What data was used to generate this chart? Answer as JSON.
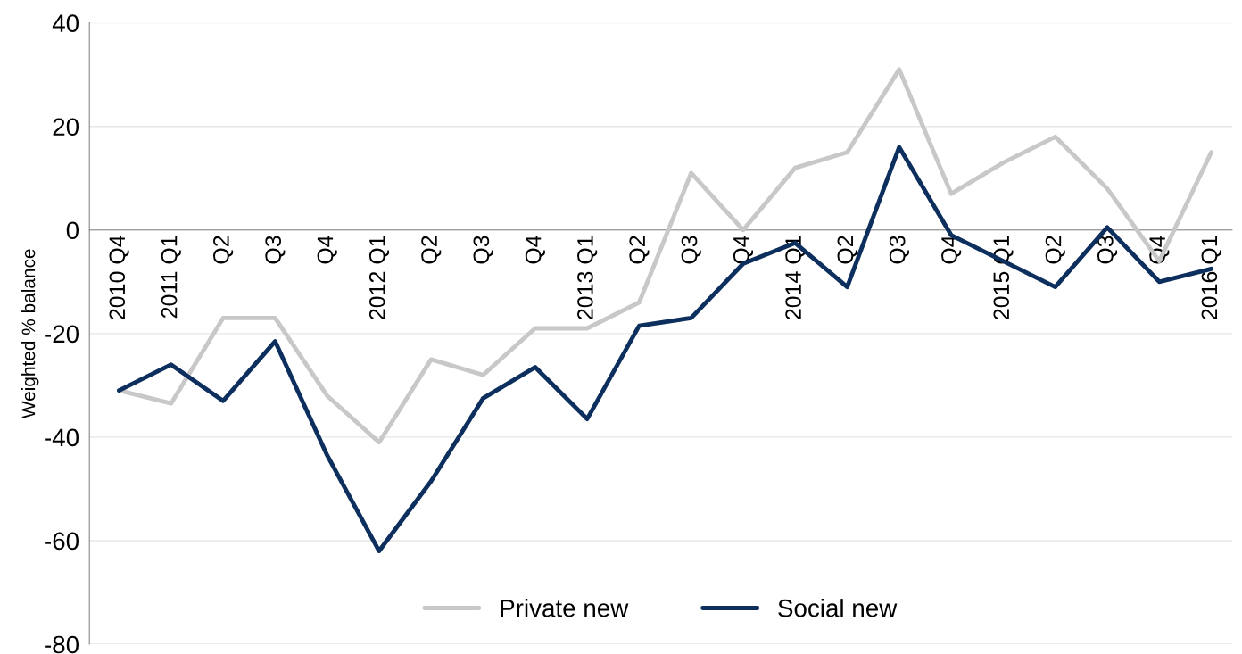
{
  "chart_data": {
    "type": "line",
    "ylabel": "Weighted % balance",
    "categories": [
      "2010 Q4",
      "2011 Q1",
      "Q2",
      "Q3",
      "Q4",
      "2012 Q1",
      "Q2",
      "Q3",
      "Q4",
      "2013 Q1",
      "Q2",
      "Q3",
      "Q4",
      "2014 Q1",
      "Q2",
      "Q3",
      "Q4",
      "2015 Q1",
      "Q2",
      "Q3",
      "Q4",
      "2016 Q1"
    ],
    "series": [
      {
        "name": "Private new",
        "color": "#c8c8c8",
        "values": [
          -31,
          -33.5,
          -17,
          -17,
          -32,
          -41,
          -25,
          -28,
          -19,
          -19,
          -14,
          11,
          0,
          12,
          15,
          31,
          7,
          13,
          18,
          8,
          -6,
          15
        ]
      },
      {
        "name": "Social new",
        "color": "#0d2f5e",
        "values": [
          -31,
          -26,
          -33,
          -21.5,
          -43.5,
          -62,
          -48.5,
          -32.5,
          -26.5,
          -36.5,
          -18.5,
          -17,
          -6.5,
          -2.5,
          -11,
          16,
          -1,
          -6,
          -11,
          0.5,
          -10,
          -7.5
        ]
      }
    ],
    "ylim": [
      -80,
      40
    ],
    "yticks": [
      -80,
      -60,
      -40,
      -20,
      0,
      20,
      40
    ],
    "grid": "y",
    "legend": "bottom",
    "marker": "none",
    "line_style": "solid"
  }
}
